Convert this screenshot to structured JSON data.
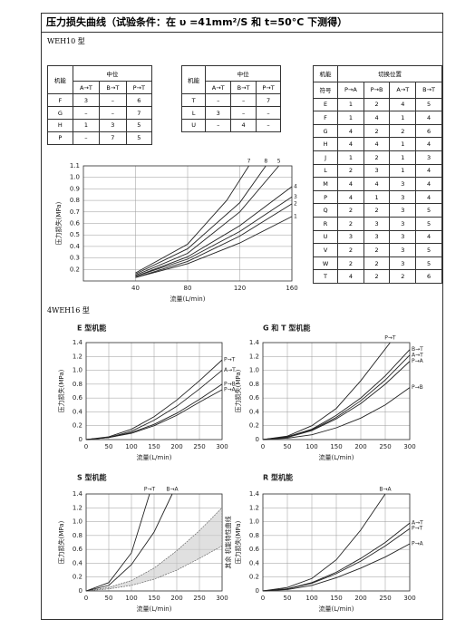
{
  "header": {
    "title": "压力损失曲线（试验条件：在 υ =41mm²/S 和 t=50°C 下测得）"
  },
  "sections": [
    "WEH10 型",
    "4WEH16 型"
  ],
  "tables": [
    {
      "corner": [
        "机能"
      ],
      "group": "中位",
      "columns": [
        "A→T",
        "B→T",
        "P→T"
      ],
      "rows": [
        [
          "F",
          3,
          "–",
          6
        ],
        [
          "G",
          "–",
          "–",
          7
        ],
        [
          "H",
          1,
          3,
          5
        ],
        [
          "P",
          "–",
          7,
          5
        ]
      ]
    },
    {
      "corner": [
        "机能"
      ],
      "group": "中位",
      "columns": [
        "A→T",
        "B→T",
        "P→T"
      ],
      "rows": [
        [
          "T",
          "–",
          "–",
          7
        ],
        [
          "L",
          3,
          "–",
          "–"
        ],
        [
          "U",
          "–",
          4,
          "–"
        ]
      ]
    },
    {
      "corner": [
        "机能",
        "符号"
      ],
      "group": "切换位置",
      "columns": [
        "P→A",
        "P→B",
        "A→T",
        "B→T"
      ],
      "rows": [
        [
          "E",
          1,
          2,
          4,
          5
        ],
        [
          "F",
          1,
          4,
          1,
          4
        ],
        [
          "G",
          4,
          2,
          2,
          6
        ],
        [
          "H",
          4,
          4,
          1,
          4
        ],
        [
          "J",
          1,
          2,
          1,
          3
        ],
        [
          "L",
          2,
          3,
          1,
          4
        ],
        [
          "M",
          4,
          4,
          3,
          4
        ],
        [
          "P",
          4,
          1,
          3,
          4
        ],
        [
          "Q",
          2,
          2,
          3,
          5
        ],
        [
          "R",
          2,
          3,
          3,
          5
        ],
        [
          "U",
          3,
          3,
          3,
          4
        ],
        [
          "V",
          2,
          2,
          3,
          5
        ],
        [
          "W",
          2,
          2,
          3,
          5
        ],
        [
          "T",
          4,
          2,
          2,
          6
        ]
      ]
    }
  ],
  "chart_data": [
    {
      "type": "line",
      "xlabel": "流量(L/min)",
      "ylabel": "压力损失(MPa)",
      "xlim": [
        0,
        160
      ],
      "xticks": [
        40,
        80,
        120,
        160
      ],
      "ylim": [
        0.1,
        1.1
      ],
      "yticks": [
        0.2,
        0.3,
        0.4,
        0.5,
        0.6,
        0.7,
        0.8,
        0.9,
        {
          "value": 1,
          "label": "1.0"
        },
        1.1
      ],
      "grid": true,
      "series": [
        {
          "name": "1",
          "color": "#222",
          "x": [
            40,
            80,
            120,
            160
          ],
          "values": [
            0.13,
            0.25,
            0.43,
            0.66
          ]
        },
        {
          "name": "2",
          "color": "#222",
          "x": [
            40,
            80,
            120,
            160
          ],
          "values": [
            0.13,
            0.27,
            0.49,
            0.77
          ]
        },
        {
          "name": "3",
          "color": "#222",
          "x": [
            40,
            80,
            120,
            160
          ],
          "values": [
            0.14,
            0.29,
            0.53,
            0.83
          ]
        },
        {
          "name": "4",
          "color": "#222",
          "x": [
            40,
            80,
            120,
            160
          ],
          "values": [
            0.14,
            0.31,
            0.58,
            0.92
          ]
        },
        {
          "name": "5",
          "color": "#222",
          "x": [
            40,
            80,
            120,
            150
          ],
          "values": [
            0.15,
            0.34,
            0.7,
            1.1
          ]
        },
        {
          "name": "8",
          "color": "#222",
          "x": [
            40,
            80,
            120,
            140
          ],
          "values": [
            0.16,
            0.38,
            0.78,
            1.1
          ]
        },
        {
          "name": "7",
          "color": "#222",
          "x": [
            40,
            80,
            110,
            127
          ],
          "values": [
            0.17,
            0.42,
            0.8,
            1.1
          ]
        }
      ]
    },
    {
      "type": "line",
      "title": "E 型机能",
      "xlabel": "流量(L/min)",
      "ylabel": "压力损失(MPa)",
      "xlim": [
        0,
        300
      ],
      "xticks": [
        0,
        50,
        100,
        150,
        200,
        250,
        300
      ],
      "ylim": [
        0,
        1.4
      ],
      "yticks": [
        0,
        0.2,
        0.4,
        0.6,
        0.8,
        {
          "value": 1,
          "label": "1.0"
        },
        1.2,
        1.4
      ],
      "grid": true,
      "series": [
        {
          "name": "P→T",
          "color": "#222",
          "x": [
            0,
            50,
            100,
            150,
            200,
            250,
            300
          ],
          "values": [
            0,
            0.04,
            0.15,
            0.33,
            0.57,
            0.85,
            1.15
          ]
        },
        {
          "name": "A→T",
          "color": "#222",
          "x": [
            0,
            50,
            100,
            150,
            200,
            250,
            300
          ],
          "values": [
            0,
            0.03,
            0.12,
            0.28,
            0.48,
            0.73,
            1.0
          ]
        },
        {
          "name": "P→B",
          "color": "#222",
          "x": [
            0,
            50,
            100,
            150,
            200,
            250,
            300
          ],
          "values": [
            0,
            0.03,
            0.1,
            0.22,
            0.38,
            0.58,
            0.8
          ]
        },
        {
          "name": "P→A",
          "color": "#222",
          "x": [
            0,
            50,
            100,
            150,
            200,
            250,
            300
          ],
          "values": [
            0,
            0.03,
            0.09,
            0.2,
            0.35,
            0.54,
            0.72
          ]
        }
      ]
    },
    {
      "type": "line",
      "title": "G 和 T 型机能",
      "xlabel": "流量(L/min)",
      "ylabel": "压力损失(MPa)",
      "xlim": [
        0,
        300
      ],
      "xticks": [
        0,
        50,
        100,
        150,
        200,
        250,
        300
      ],
      "ylim": [
        0,
        1.4
      ],
      "yticks": [
        0,
        0.2,
        0.4,
        0.6,
        0.8,
        {
          "value": 1,
          "label": "1.0"
        },
        1.2,
        1.4
      ],
      "grid": true,
      "series": [
        {
          "name": "P→T",
          "color": "#222",
          "x": [
            0,
            50,
            100,
            150,
            200,
            260
          ],
          "values": [
            0,
            0.05,
            0.2,
            0.45,
            0.85,
            1.4
          ]
        },
        {
          "name": "B→T",
          "color": "#222",
          "x": [
            0,
            50,
            100,
            150,
            200,
            250,
            300
          ],
          "values": [
            0,
            0.04,
            0.15,
            0.35,
            0.6,
            0.92,
            1.3
          ]
        },
        {
          "name": "A→T",
          "color": "#222",
          "x": [
            0,
            50,
            100,
            150,
            200,
            250,
            300
          ],
          "values": [
            0,
            0.04,
            0.14,
            0.32,
            0.56,
            0.86,
            1.22
          ]
        },
        {
          "name": "P→A",
          "color": "#222",
          "x": [
            0,
            50,
            100,
            150,
            200,
            250,
            300
          ],
          "values": [
            0,
            0.03,
            0.13,
            0.3,
            0.52,
            0.8,
            1.13
          ]
        },
        {
          "name": "P→B",
          "color": "#222",
          "x": [
            0,
            50,
            100,
            150,
            200,
            250,
            300
          ],
          "values": [
            0,
            0.02,
            0.07,
            0.17,
            0.31,
            0.5,
            0.75
          ]
        }
      ]
    },
    {
      "type": "line",
      "title": "S 型机能",
      "xlabel": "流量(L/min)",
      "ylabel": "压力损失(MPa)",
      "xlim": [
        0,
        300
      ],
      "xticks": [
        0,
        50,
        100,
        150,
        200,
        250,
        300
      ],
      "ylim": [
        0,
        1.4
      ],
      "yticks": [
        0,
        0.2,
        0.4,
        0.6,
        0.8,
        {
          "value": 1,
          "label": "1.0"
        },
        1.2,
        1.4
      ],
      "grid": true,
      "band": {
        "x": [
          0,
          50,
          100,
          150,
          200,
          250,
          300
        ],
        "lower": [
          0,
          0.03,
          0.08,
          0.17,
          0.3,
          0.47,
          0.65
        ],
        "upper": [
          0,
          0.05,
          0.15,
          0.33,
          0.58,
          0.87,
          1.2
        ]
      },
      "series": [
        {
          "name": "P→T",
          "color": "#222",
          "x": [
            0,
            50,
            100,
            140
          ],
          "values": [
            0,
            0.12,
            0.55,
            1.4
          ]
        },
        {
          "name": "B→A",
          "color": "#222",
          "x": [
            0,
            50,
            100,
            150,
            190
          ],
          "values": [
            0,
            0.08,
            0.38,
            0.85,
            1.4
          ]
        }
      ]
    },
    {
      "type": "line",
      "title": "R 型机能",
      "note": "其余 机能特性曲线",
      "xlabel": "流量(L/min)",
      "ylabel": "压力损失(MPa)",
      "xlim": [
        0,
        300
      ],
      "xticks": [
        0,
        50,
        100,
        150,
        200,
        250,
        300
      ],
      "ylim": [
        0,
        1.4
      ],
      "yticks": [
        0,
        0.2,
        0.4,
        0.6,
        0.8,
        {
          "value": 1,
          "label": "1.0"
        },
        1.2,
        1.4
      ],
      "grid": true,
      "series": [
        {
          "name": "B→A",
          "color": "#222",
          "x": [
            0,
            50,
            100,
            150,
            200,
            250
          ],
          "values": [
            0,
            0.05,
            0.18,
            0.45,
            0.88,
            1.4
          ]
        },
        {
          "name": "A→T",
          "color": "#222",
          "x": [
            0,
            50,
            100,
            150,
            200,
            250,
            300
          ],
          "values": [
            0,
            0.03,
            0.12,
            0.27,
            0.47,
            0.7,
            0.98
          ]
        },
        {
          "name": "P→T",
          "color": "#222",
          "x": [
            0,
            50,
            100,
            150,
            200,
            250,
            300
          ],
          "values": [
            0,
            0.03,
            0.11,
            0.25,
            0.43,
            0.65,
            0.9
          ]
        },
        {
          "name": "P→A",
          "color": "#222",
          "x": [
            0,
            50,
            100,
            150,
            200,
            250,
            300
          ],
          "values": [
            0,
            0.02,
            0.08,
            0.19,
            0.33,
            0.49,
            0.68
          ]
        }
      ]
    }
  ]
}
